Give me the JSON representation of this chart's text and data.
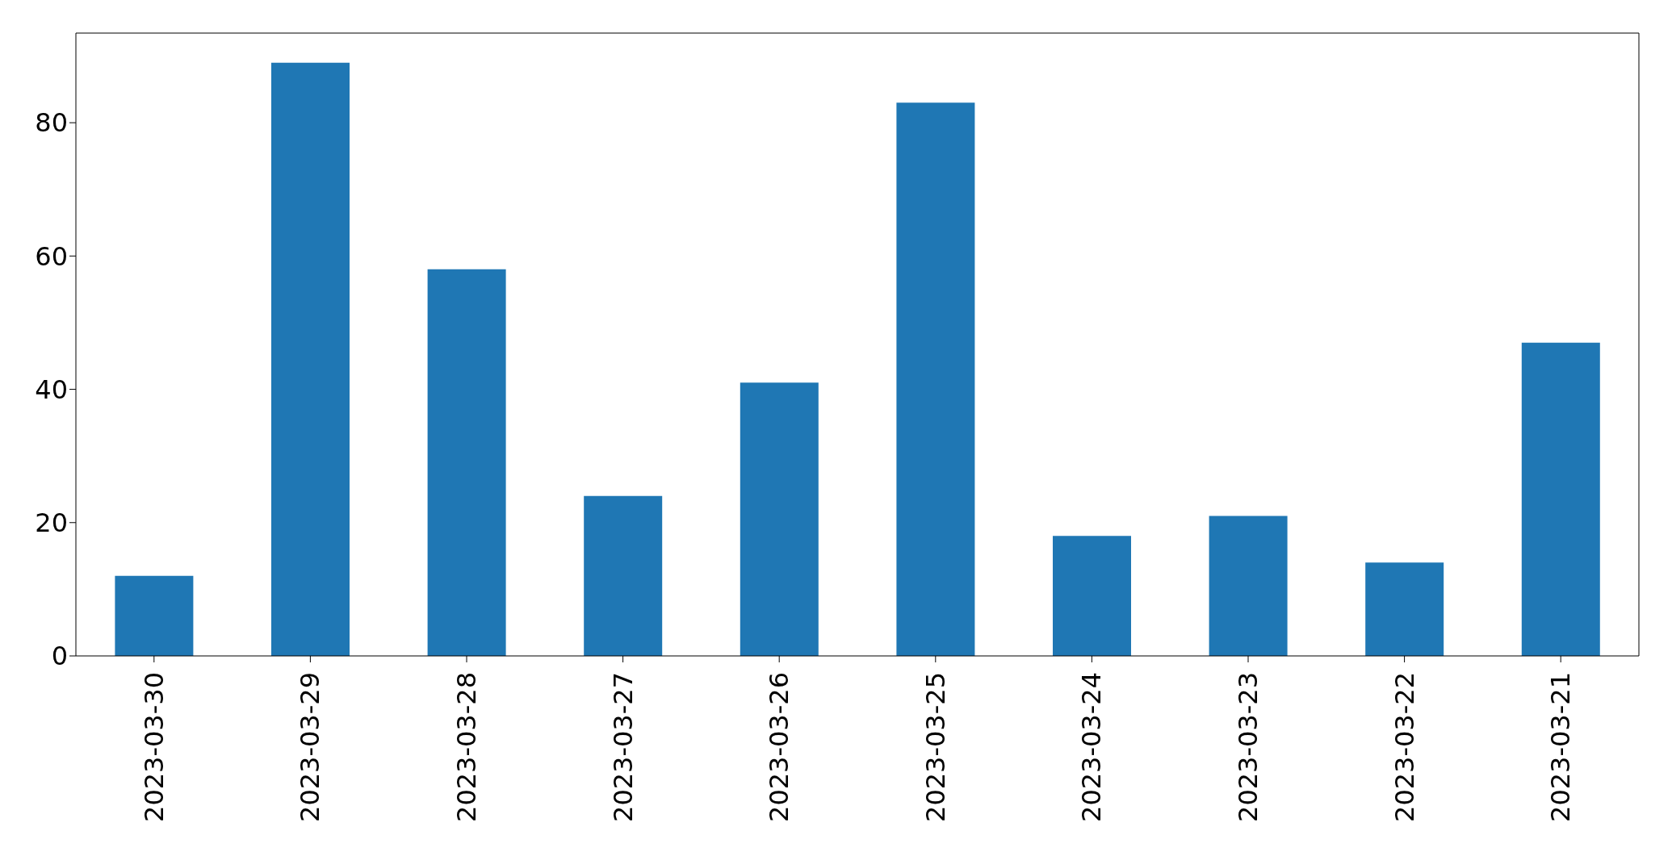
{
  "chart_data": {
    "type": "bar",
    "categories": [
      "2023-03-30",
      "2023-03-29",
      "2023-03-28",
      "2023-03-27",
      "2023-03-26",
      "2023-03-25",
      "2023-03-24",
      "2023-03-23",
      "2023-03-22",
      "2023-03-21"
    ],
    "values": [
      12,
      89,
      58,
      24,
      41,
      83,
      18,
      21,
      14,
      47
    ],
    "color": "#1f77b4",
    "ylim": [
      0,
      93.45
    ],
    "yticks": [
      0,
      20,
      40,
      60,
      80
    ],
    "grid": false,
    "legend": false
  }
}
